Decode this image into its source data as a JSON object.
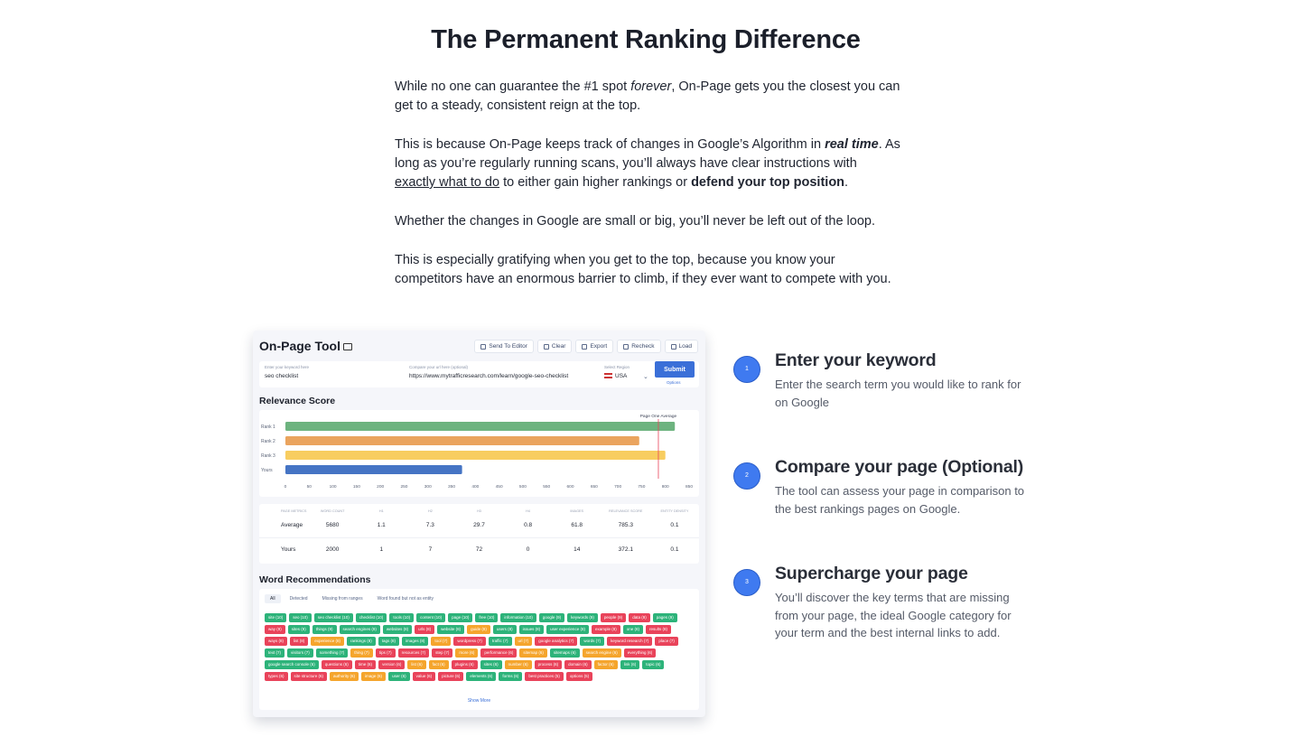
{
  "heading": "The Permanent Ranking Difference",
  "paragraphs": {
    "p1_a": "While no one can guarantee the #1 spot ",
    "p1_em": "forever",
    "p1_b": ", On-Page gets you the closest you can get to a steady, consistent reign at the top.",
    "p2_a": "This is because On-Page keeps track of changes in Google’s Algorithm in ",
    "p2_em": "real time",
    "p2_b": ". As long as you’re regularly running scans, you’ll always have clear instructions with ",
    "p2_link": "exactly what to do",
    "p2_c": " to either gain higher rankings or ",
    "p2_strong": "defend your top position",
    "p2_d": ".",
    "p3": "Whether the changes in Google are small or big, you’ll never be left out of the loop.",
    "p4": "This is especially gratifying when you get to the top, because you know your competitors have an enormous barrier to climb, if they ever want to compete with you."
  },
  "tool": {
    "title": "On-Page Tool",
    "toolbar": {
      "send": "Send To Editor",
      "clear": "Clear",
      "export": "Export",
      "recheck": "Recheck",
      "load": "Load"
    },
    "form": {
      "keyword_label": "Enter your keyword here",
      "keyword_value": "seo checklist",
      "url_label": "Compare your url here (optional)",
      "url_value": "https://www.mytrafficresearch.com/learn/google-seo-checklist",
      "region_label": "Select Region",
      "region_value": "USA",
      "submit": "Submit",
      "options": "Options"
    },
    "relevance_title": "Relevance Score",
    "chart_data": {
      "type": "bar",
      "orientation": "horizontal",
      "categories": [
        "Rank 1",
        "Rank 2",
        "Rank 3",
        "Yours"
      ],
      "values": [
        820,
        745,
        800,
        372
      ],
      "colors": [
        "#6db37f",
        "#eaa45e",
        "#f8cd60",
        "#4574c4"
      ],
      "reference_line": {
        "label": "Page One Average",
        "value": 785.3,
        "color": "#e9435a"
      },
      "xlim": [
        0,
        850
      ],
      "xticks": [
        "0",
        "50",
        "100",
        "150",
        "200",
        "250",
        "300",
        "350",
        "400",
        "450",
        "500",
        "550",
        "600",
        "650",
        "700",
        "750",
        "800",
        "850"
      ]
    },
    "metrics": {
      "headers": [
        "PAGE METRICS",
        "WORD COUNT",
        "H1",
        "H2",
        "H3",
        "H4",
        "IMAGES",
        "RELEVANCE SCORE",
        "ENTITY DENSITY"
      ],
      "rows": [
        [
          "Average",
          "5680",
          "1.1",
          "7.3",
          "29.7",
          "0.8",
          "61.8",
          "785.3",
          "0.1"
        ],
        [
          "Yours",
          "2000",
          "1",
          "7",
          "72",
          "0",
          "14",
          "372.1",
          "0.1"
        ]
      ]
    },
    "words_title": "Word Recommendations",
    "word_tabs": [
      "All",
      "Detected",
      "Missing from ranges",
      "Word found but not as entity"
    ],
    "tags": [
      {
        "t": "site (10)",
        "c": "g"
      },
      {
        "t": "seo (10)",
        "c": "g"
      },
      {
        "t": "seo checklist (10)",
        "c": "g"
      },
      {
        "t": "checklist (10)",
        "c": "g"
      },
      {
        "t": "tools (10)",
        "c": "g"
      },
      {
        "t": "content (10)",
        "c": "g"
      },
      {
        "t": "page (10)",
        "c": "g"
      },
      {
        "t": "free (10)",
        "c": "g"
      },
      {
        "t": "information (10)",
        "c": "g"
      },
      {
        "t": "google (9)",
        "c": "g"
      },
      {
        "t": "keywords (9)",
        "c": "g"
      },
      {
        "t": "people (9)",
        "c": "r"
      },
      {
        "t": "data (9)",
        "c": "r"
      },
      {
        "t": "pages (9)",
        "c": "g"
      },
      {
        "t": "way (9)",
        "c": "r"
      },
      {
        "t": "sites (9)",
        "c": "g"
      },
      {
        "t": "things (9)",
        "c": "g"
      },
      {
        "t": "search engines (9)",
        "c": "g"
      },
      {
        "t": "websites (8)",
        "c": "g"
      },
      {
        "t": "urls (8)",
        "c": "r"
      },
      {
        "t": "website (8)",
        "c": "g"
      },
      {
        "t": "guide (8)",
        "c": "o"
      },
      {
        "t": "users (8)",
        "c": "g"
      },
      {
        "t": "issues (8)",
        "c": "g"
      },
      {
        "t": "user experience (8)",
        "c": "g"
      },
      {
        "t": "example (8)",
        "c": "r"
      },
      {
        "t": "one (8)",
        "c": "g"
      },
      {
        "t": "results (8)",
        "c": "r"
      },
      {
        "t": "ways (8)",
        "c": "r"
      },
      {
        "t": "list (8)",
        "c": "r"
      },
      {
        "t": "experience (8)",
        "c": "o"
      },
      {
        "t": "rankings (8)",
        "c": "g"
      },
      {
        "t": "tags (8)",
        "c": "g"
      },
      {
        "t": "images (8)",
        "c": "g"
      },
      {
        "t": "tool (7)",
        "c": "o"
      },
      {
        "t": "wordpress (7)",
        "c": "r"
      },
      {
        "t": "traffic (7)",
        "c": "g"
      },
      {
        "t": "url (7)",
        "c": "o"
      },
      {
        "t": "google analytics (7)",
        "c": "r"
      },
      {
        "t": "words (7)",
        "c": "g"
      },
      {
        "t": "keyword research (7)",
        "c": "r"
      },
      {
        "t": "place (7)",
        "c": "r"
      },
      {
        "t": "text (7)",
        "c": "g"
      },
      {
        "t": "visitors (7)",
        "c": "g"
      },
      {
        "t": "something (7)",
        "c": "g"
      },
      {
        "t": "thing (7)",
        "c": "o"
      },
      {
        "t": "tips (7)",
        "c": "r"
      },
      {
        "t": "resources (7)",
        "c": "r"
      },
      {
        "t": "step (7)",
        "c": "r"
      },
      {
        "t": "more (6)",
        "c": "o"
      },
      {
        "t": "performance (6)",
        "c": "r"
      },
      {
        "t": "sitemap (6)",
        "c": "o"
      },
      {
        "t": "sitemaps (6)",
        "c": "g"
      },
      {
        "t": "search engine (6)",
        "c": "o"
      },
      {
        "t": "everything (6)",
        "c": "r"
      },
      {
        "t": "google search console (6)",
        "c": "g"
      },
      {
        "t": "questions (6)",
        "c": "r"
      },
      {
        "t": "time (6)",
        "c": "r"
      },
      {
        "t": "version (6)",
        "c": "r"
      },
      {
        "t": "list (6)",
        "c": "o"
      },
      {
        "t": "fact (6)",
        "c": "o"
      },
      {
        "t": "plugins (6)",
        "c": "r"
      },
      {
        "t": "sites (6)",
        "c": "g"
      },
      {
        "t": "number (6)",
        "c": "o"
      },
      {
        "t": "process (6)",
        "c": "r"
      },
      {
        "t": "domain (6)",
        "c": "r"
      },
      {
        "t": "factor (6)",
        "c": "o"
      },
      {
        "t": "link (6)",
        "c": "g"
      },
      {
        "t": "topic (6)",
        "c": "g"
      },
      {
        "t": "types (6)",
        "c": "r"
      },
      {
        "t": "site structure (6)",
        "c": "r"
      },
      {
        "t": "authority (6)",
        "c": "o"
      },
      {
        "t": "image (6)",
        "c": "o"
      },
      {
        "t": "user (6)",
        "c": "g"
      },
      {
        "t": "value (6)",
        "c": "r"
      },
      {
        "t": "picture (6)",
        "c": "r"
      },
      {
        "t": "elements (6)",
        "c": "g"
      },
      {
        "t": "forms (6)",
        "c": "g"
      },
      {
        "t": "best practices (5)",
        "c": "r"
      },
      {
        "t": "options (5)",
        "c": "r"
      }
    ],
    "show_more": "Show More"
  },
  "steps": [
    {
      "num": "1",
      "title": "Enter your keyword",
      "desc": "Enter the search term you would like to rank for on Google"
    },
    {
      "num": "2",
      "title": "Compare your page (Optional)",
      "desc": "The tool can assess your page in comparison to the best rankings pages on Google."
    },
    {
      "num": "3",
      "title": "Supercharge your page",
      "desc": "You’ll discover the key terms that are missing from your page, the ideal Google category for your term and the best internal links to add."
    }
  ]
}
